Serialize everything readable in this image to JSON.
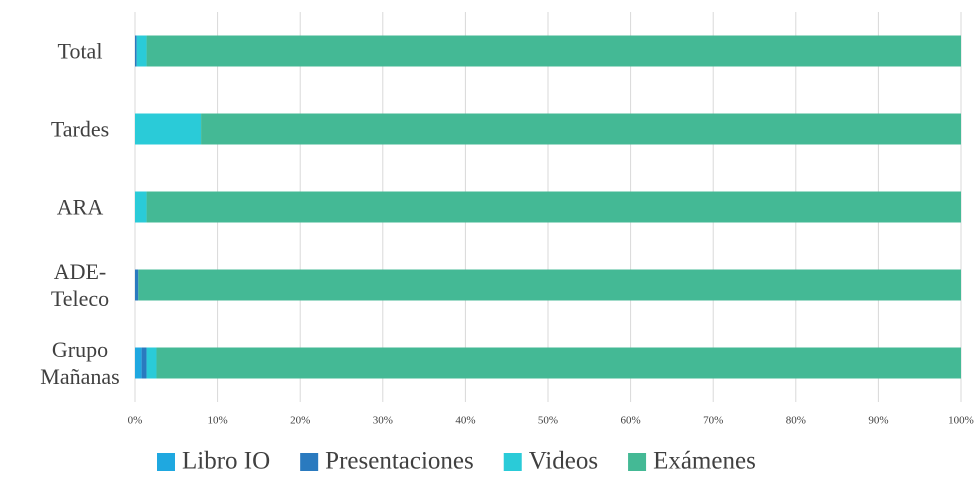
{
  "chart_data": {
    "type": "stacked-barh",
    "categories": [
      "Total",
      "Tardes",
      "ARA",
      "ADE-Teleco",
      "Grupo Mañanas"
    ],
    "series": [
      {
        "name": "Libro IO",
        "color": "#1fa8e0",
        "values": [
          0,
          0,
          0,
          0,
          0.8
        ]
      },
      {
        "name": "Presentaciones",
        "color": "#2a7abf",
        "values": [
          0.2,
          0,
          0,
          0.4,
          0.6
        ]
      },
      {
        "name": "Videos",
        "color": "#2acbd8",
        "values": [
          1.2,
          8.0,
          1.4,
          0,
          1.2
        ]
      },
      {
        "name": "Exámenes",
        "color": "#44b995",
        "values": [
          98.6,
          92.0,
          98.6,
          99.6,
          97.4
        ]
      }
    ],
    "xlim": [
      0,
      100
    ],
    "xticks": [
      {
        "value": 0,
        "label": "0%"
      },
      {
        "value": 10,
        "label": "10%"
      },
      {
        "value": 20,
        "label": "20%"
      },
      {
        "value": 30,
        "label": "30%"
      },
      {
        "value": 40,
        "label": "40%"
      },
      {
        "value": 50,
        "label": "50%"
      },
      {
        "value": 60,
        "label": "60%"
      },
      {
        "value": 70,
        "label": "70%"
      },
      {
        "value": 80,
        "label": "80%"
      },
      {
        "value": 90,
        "label": "90%"
      },
      {
        "value": 100,
        "label": "100%"
      }
    ],
    "grid": true,
    "legend": "bottom"
  }
}
